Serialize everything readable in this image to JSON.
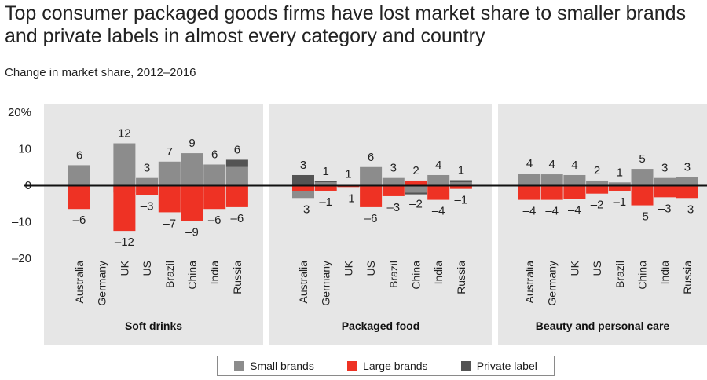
{
  "chart_data": {
    "type": "bar",
    "title": "Top consumer packaged goods firms have lost market share to smaller brands and private labels in almost every category and country",
    "subtitle": "Change in market share, 2012–2016",
    "ylim": [
      -20,
      20
    ],
    "yticks": [
      {
        "value": 20,
        "label": "20%"
      },
      {
        "value": 10,
        "label": "10"
      },
      {
        "value": 0,
        "label": "0"
      },
      {
        "value": -10,
        "label": "–10"
      },
      {
        "value": -20,
        "label": "–20"
      }
    ],
    "series": [
      {
        "name": "Small brands",
        "color": "#8c8c8c"
      },
      {
        "name": "Large brands",
        "color": "#ee3224"
      },
      {
        "name": "Private label",
        "color": "#545454"
      }
    ],
    "panels": [
      {
        "name": "Soft drinks",
        "categories": [
          "Australia",
          "Germany",
          "UK",
          "US",
          "Brazil",
          "China",
          "India",
          "Russia"
        ],
        "small_brands": [
          5.5,
          0,
          11.5,
          2,
          6.5,
          8.8,
          5.7,
          5
        ],
        "large_brands": [
          -6.5,
          0,
          -12.5,
          -2.7,
          -7.4,
          -9.8,
          -6.5,
          -6
        ],
        "private_label": [
          0,
          0,
          -2,
          -0.3,
          0,
          0,
          0,
          2
        ],
        "top_labels": [
          "6",
          "",
          "12",
          "3",
          "7",
          "9",
          "6",
          "6"
        ],
        "bottom_labels": [
          "–6",
          "",
          "–12",
          "–3",
          "–7",
          "–9",
          "–6",
          "–6"
        ]
      },
      {
        "name": "Packaged food",
        "categories": [
          "Australia",
          "Germany",
          "UK",
          "US",
          "Brazil",
          "China",
          "India",
          "Russia"
        ],
        "small_brands": [
          -3.5,
          0.8,
          0,
          5,
          2,
          -2,
          2.8,
          0.8
        ],
        "large_brands": [
          -1.5,
          -1.5,
          -0.5,
          -6,
          -3,
          1.3,
          -4,
          -1
        ],
        "private_label": [
          2.8,
          0.3,
          0.3,
          0,
          0,
          -0.5,
          0,
          0.6
        ],
        "top_labels": [
          "3",
          "1",
          "1",
          "6",
          "3",
          "2",
          "4",
          "1"
        ],
        "bottom_labels": [
          "–3",
          "–1",
          "–1",
          "–6",
          "–3",
          "–2",
          "–4",
          "–1"
        ]
      },
      {
        "name": "Beauty and personal care",
        "categories": [
          "Australia",
          "Germany",
          "UK",
          "US",
          "Brazil",
          "China",
          "India",
          "Russia"
        ],
        "small_brands": [
          3.2,
          3,
          2.8,
          1.3,
          0.8,
          4.5,
          2,
          2.3
        ],
        "large_brands": [
          -4,
          -4,
          -3.8,
          -2.3,
          -1.5,
          -5.5,
          -3.3,
          -3.5
        ],
        "private_label": [
          0,
          0,
          0,
          0,
          0,
          0,
          0,
          0
        ],
        "top_labels": [
          "4",
          "4",
          "4",
          "2",
          "1",
          "5",
          "3",
          "3"
        ],
        "bottom_labels": [
          "–4",
          "–4",
          "–4",
          "–2",
          "–1",
          "–5",
          "–3",
          "–3"
        ]
      }
    ],
    "legend_position": "bottom"
  }
}
